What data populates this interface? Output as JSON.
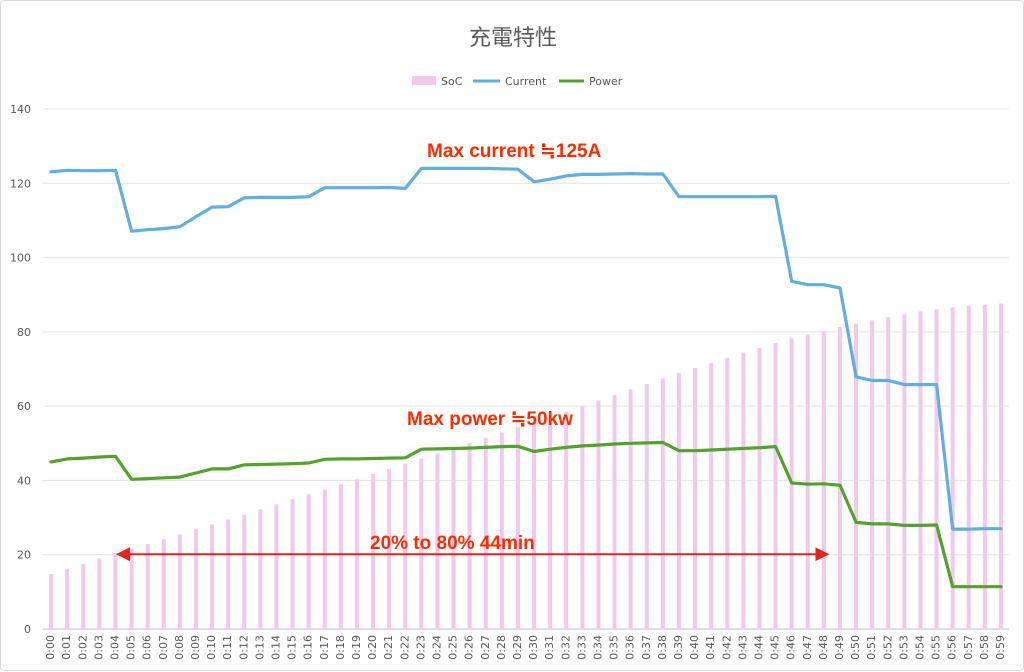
{
  "chart_data": {
    "type": "bar+line",
    "title": "充電特性",
    "xlabel": "",
    "ylabel": "",
    "ylim": [
      0,
      140
    ],
    "yticks": [
      0,
      20,
      40,
      60,
      80,
      100,
      120,
      140
    ],
    "grid": true,
    "legend_position": "top",
    "categories": [
      "0:00",
      "0:01",
      "0:02",
      "0:03",
      "0:04",
      "0:05",
      "0:06",
      "0:07",
      "0:08",
      "0:09",
      "0:10",
      "0:11",
      "0:12",
      "0:13",
      "0:14",
      "0:15",
      "0:16",
      "0:17",
      "0:18",
      "0:19",
      "0:20",
      "0:21",
      "0:22",
      "0:23",
      "0:24",
      "0:25",
      "0:26",
      "0:27",
      "0:28",
      "0:29",
      "0:30",
      "0:31",
      "0:32",
      "0:33",
      "0:34",
      "0:35",
      "0:36",
      "0:37",
      "0:38",
      "0:39",
      "0:40",
      "0:41",
      "0:42",
      "0:43",
      "0:44",
      "0:45",
      "0:46",
      "0:47",
      "0:48",
      "0:49",
      "0:50",
      "0:51",
      "0:52",
      "0:53",
      "0:54",
      "0:55",
      "0:56",
      "0:57",
      "0:58",
      "0:59"
    ],
    "series": [
      {
        "name": "SoC",
        "kind": "bar",
        "color": "#f2c9ee",
        "values": [
          14.8,
          16.2,
          17.5,
          19.0,
          20.5,
          21.7,
          22.9,
          24.2,
          25.5,
          26.9,
          28.2,
          29.5,
          30.8,
          32.2,
          33.6,
          35.0,
          36.3,
          37.6,
          39.0,
          40.3,
          41.7,
          43.1,
          44.5,
          45.9,
          47.3,
          48.7,
          50.1,
          51.5,
          52.9,
          54.3,
          55.7,
          57.1,
          58.5,
          60.0,
          61.5,
          63.0,
          64.5,
          66.0,
          67.5,
          69.0,
          70.3,
          71.6,
          73.0,
          74.4,
          75.7,
          77.0,
          78.3,
          79.3,
          80.2,
          81.3,
          82.2,
          83.1,
          83.9,
          84.7,
          85.5,
          86.1,
          86.6,
          87.0,
          87.3,
          87.6
        ]
      },
      {
        "name": "Current",
        "kind": "line",
        "color": "#62aee0",
        "values": [
          123.1,
          123.5,
          123.4,
          123.4,
          123.5,
          107.1,
          107.5,
          107.8,
          108.3,
          111.0,
          113.6,
          113.7,
          116.1,
          116.2,
          116.2,
          116.2,
          116.4,
          118.8,
          118.8,
          118.8,
          118.8,
          118.9,
          118.6,
          124.0,
          124.0,
          124.0,
          124.0,
          124.0,
          123.9,
          123.8,
          120.4,
          121.1,
          122.0,
          122.4,
          122.4,
          122.5,
          122.6,
          122.5,
          122.5,
          116.4,
          116.4,
          116.4,
          116.4,
          116.4,
          116.4,
          116.5,
          93.6,
          92.7,
          92.7,
          91.8,
          67.9,
          66.9,
          66.9,
          65.8,
          65.8,
          65.8,
          26.9,
          26.9,
          27.0,
          27.0
        ]
      },
      {
        "name": "Power",
        "kind": "line",
        "color": "#53a22e",
        "values": [
          45.0,
          45.8,
          46.0,
          46.3,
          46.5,
          40.3,
          40.5,
          40.7,
          40.9,
          42.0,
          43.1,
          43.1,
          44.2,
          44.3,
          44.4,
          44.5,
          44.7,
          45.7,
          45.8,
          45.8,
          45.9,
          46.0,
          46.1,
          48.4,
          48.5,
          48.6,
          48.7,
          48.9,
          49.1,
          49.2,
          47.8,
          48.4,
          48.9,
          49.3,
          49.5,
          49.8,
          50.0,
          50.1,
          50.2,
          48.0,
          48.0,
          48.2,
          48.4,
          48.6,
          48.8,
          49.1,
          39.3,
          39.0,
          39.1,
          38.7,
          28.7,
          28.3,
          28.3,
          27.9,
          27.9,
          28.0,
          11.4,
          11.4,
          11.4,
          11.4
        ]
      }
    ],
    "annotations": [
      {
        "text": "Max current ≒125A"
      },
      {
        "text": "Max power  ≒50kw"
      },
      {
        "text": "20% to 80%    44min",
        "arrow_from": "0:04",
        "arrow_to": "0:48",
        "arrow_y": 20
      }
    ]
  }
}
